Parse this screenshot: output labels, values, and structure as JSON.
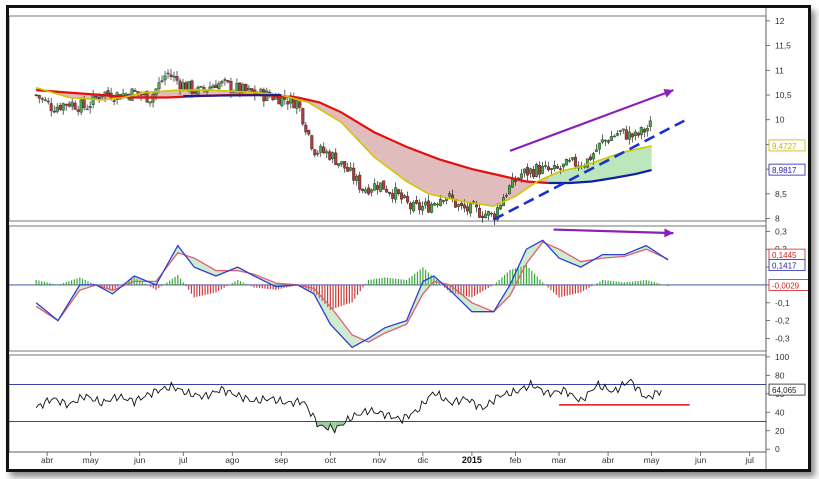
{
  "chart_data": [
    {
      "type": "candlestick",
      "panel": "price",
      "title": "",
      "y_ticks": [
        "12",
        "11,5",
        "11",
        "10,5",
        "10",
        "9,5",
        "9",
        "8,5",
        "8"
      ],
      "ylim": [
        7.95,
        12.1
      ],
      "last_values": [
        {
          "label": "9,4727",
          "color": "#c8b400"
        },
        {
          "label": "8,9817",
          "color": "#2222aa"
        }
      ],
      "close_path": [
        [
          0,
          10.5
        ],
        [
          3,
          10.25
        ],
        [
          6,
          10.35
        ],
        [
          9,
          10.25
        ],
        [
          12,
          10.55
        ],
        [
          15,
          10.5
        ],
        [
          18,
          10.55
        ],
        [
          21,
          10.45
        ],
        [
          24,
          10.95
        ],
        [
          27,
          10.7
        ],
        [
          30,
          10.55
        ],
        [
          33,
          10.75
        ],
        [
          36,
          10.65
        ],
        [
          39,
          10.55
        ],
        [
          42,
          10.5
        ],
        [
          45,
          10.45
        ],
        [
          48,
          10.35
        ],
        [
          51,
          9.4
        ],
        [
          54,
          9.3
        ],
        [
          57,
          9.0
        ],
        [
          60,
          8.6
        ],
        [
          63,
          8.7
        ],
        [
          66,
          8.5
        ],
        [
          69,
          8.2
        ],
        [
          72,
          8.25
        ],
        [
          75,
          8.5
        ],
        [
          78,
          8.2
        ],
        [
          81,
          8.15
        ],
        [
          84,
          8.05
        ],
        [
          86,
          8.5
        ],
        [
          89,
          8.9
        ],
        [
          92,
          9.0
        ],
        [
          95,
          8.95
        ],
        [
          98,
          9.1
        ],
        [
          101,
          9.15
        ],
        [
          104,
          9.55
        ],
        [
          107,
          9.75
        ],
        [
          110,
          9.65
        ],
        [
          113,
          9.9
        ]
      ],
      "sma_fast": [
        [
          0,
          10.65
        ],
        [
          6,
          10.45
        ],
        [
          12,
          10.4
        ],
        [
          16,
          10.45
        ],
        [
          20,
          10.55
        ],
        [
          26,
          10.6
        ],
        [
          32,
          10.6
        ],
        [
          40,
          10.55
        ],
        [
          45,
          10.5
        ],
        [
          50,
          10.35
        ],
        [
          56,
          9.95
        ],
        [
          62,
          9.25
        ],
        [
          68,
          8.75
        ],
        [
          72,
          8.5
        ],
        [
          78,
          8.35
        ],
        [
          84,
          8.25
        ],
        [
          88,
          8.45
        ],
        [
          92,
          8.75
        ],
        [
          96,
          8.95
        ],
        [
          100,
          9.05
        ],
        [
          104,
          9.2
        ],
        [
          108,
          9.35
        ],
        [
          113,
          9.47
        ]
      ],
      "sma_slow": [
        [
          0,
          10.6
        ],
        [
          6,
          10.55
        ],
        [
          12,
          10.5
        ],
        [
          18,
          10.45
        ],
        [
          24,
          10.45
        ],
        [
          30,
          10.48
        ],
        [
          36,
          10.5
        ],
        [
          42,
          10.5
        ],
        [
          48,
          10.45
        ],
        [
          52,
          10.35
        ],
        [
          56,
          10.15
        ],
        [
          62,
          9.75
        ],
        [
          68,
          9.45
        ],
        [
          74,
          9.2
        ],
        [
          80,
          9.0
        ],
        [
          86,
          8.85
        ],
        [
          90,
          8.75
        ],
        [
          94,
          8.72
        ]
      ],
      "sma_slow_rising": [
        [
          94,
          8.72
        ],
        [
          98,
          8.72
        ],
        [
          102,
          8.75
        ],
        [
          106,
          8.82
        ],
        [
          110,
          8.9
        ],
        [
          113,
          8.98
        ]
      ],
      "trend_line": {
        "from": [
          84,
          7.98
        ],
        "to": [
          119,
          9.98
        ]
      },
      "arrow": {
        "from": [
          87,
          9.37
        ],
        "to": [
          117,
          10.6
        ]
      }
    },
    {
      "type": "line",
      "panel": "macd",
      "y_ticks": [
        "0,3",
        "0,2",
        "0,1",
        "0",
        "-0,1",
        "-0,2",
        "-0,3"
      ],
      "ylim": [
        -0.37,
        0.33
      ],
      "last_values": [
        {
          "label": "0,1445",
          "color": "#cc2222"
        },
        {
          "label": "0,1417",
          "color": "#2222aa"
        },
        {
          "label": "-0,0029",
          "color": "#cc2222"
        }
      ],
      "macd": [
        [
          0,
          -0.1
        ],
        [
          4,
          -0.2
        ],
        [
          8,
          0.0
        ],
        [
          11,
          0.0
        ],
        [
          14,
          -0.05
        ],
        [
          18,
          0.05
        ],
        [
          22,
          0.0
        ],
        [
          26,
          0.22
        ],
        [
          29,
          0.1
        ],
        [
          33,
          0.05
        ],
        [
          37,
          0.1
        ],
        [
          40,
          0.05
        ],
        [
          44,
          -0.01
        ],
        [
          48,
          0.0
        ],
        [
          51,
          -0.05
        ],
        [
          54,
          -0.22
        ],
        [
          58,
          -0.35
        ],
        [
          61,
          -0.3
        ],
        [
          64,
          -0.24
        ],
        [
          68,
          -0.2
        ],
        [
          71,
          0.02
        ],
        [
          73,
          0.05
        ],
        [
          76,
          -0.03
        ],
        [
          80,
          -0.15
        ],
        [
          84,
          -0.15
        ],
        [
          87,
          0.0
        ],
        [
          90,
          0.2
        ],
        [
          93,
          0.25
        ],
        [
          96,
          0.15
        ],
        [
          100,
          0.1
        ],
        [
          104,
          0.17
        ],
        [
          108,
          0.17
        ],
        [
          112,
          0.22
        ],
        [
          116,
          0.14
        ]
      ],
      "signal": [
        [
          0,
          -0.12
        ],
        [
          4,
          -0.2
        ],
        [
          8,
          -0.03
        ],
        [
          11,
          0.0
        ],
        [
          14,
          -0.03
        ],
        [
          18,
          0.02
        ],
        [
          22,
          0.02
        ],
        [
          26,
          0.18
        ],
        [
          29,
          0.15
        ],
        [
          33,
          0.08
        ],
        [
          37,
          0.08
        ],
        [
          40,
          0.06
        ],
        [
          44,
          0.01
        ],
        [
          48,
          0.0
        ],
        [
          51,
          -0.02
        ],
        [
          54,
          -0.12
        ],
        [
          58,
          -0.28
        ],
        [
          61,
          -0.32
        ],
        [
          64,
          -0.27
        ],
        [
          68,
          -0.22
        ],
        [
          71,
          -0.05
        ],
        [
          73,
          0.02
        ],
        [
          76,
          0.0
        ],
        [
          80,
          -0.1
        ],
        [
          84,
          -0.15
        ],
        [
          87,
          -0.06
        ],
        [
          90,
          0.12
        ],
        [
          93,
          0.24
        ],
        [
          96,
          0.2
        ],
        [
          100,
          0.13
        ],
        [
          104,
          0.15
        ],
        [
          108,
          0.16
        ],
        [
          112,
          0.2
        ],
        [
          116,
          0.144
        ]
      ],
      "zero_line": 0,
      "arrow": {
        "from": [
          95,
          0.31
        ],
        "to": [
          117,
          0.29
        ]
      }
    },
    {
      "type": "line",
      "panel": "rsi",
      "y_ticks": [
        "100",
        "80",
        "60",
        "40",
        "20",
        "0"
      ],
      "ylim": [
        -3,
        102
      ],
      "last_values": [
        {
          "label": "64,065",
          "color": "#222222"
        }
      ],
      "levels": [
        70,
        30
      ],
      "rsi": [
        [
          0,
          45
        ],
        [
          3,
          55
        ],
        [
          6,
          48
        ],
        [
          9,
          58
        ],
        [
          12,
          50
        ],
        [
          15,
          57
        ],
        [
          18,
          52
        ],
        [
          22,
          63
        ],
        [
          25,
          68
        ],
        [
          28,
          60
        ],
        [
          31,
          57
        ],
        [
          34,
          65
        ],
        [
          37,
          58
        ],
        [
          40,
          52
        ],
        [
          43,
          55
        ],
        [
          46,
          50
        ],
        [
          49,
          52
        ],
        [
          52,
          25
        ],
        [
          55,
          22
        ],
        [
          58,
          35
        ],
        [
          61,
          42
        ],
        [
          64,
          38
        ],
        [
          67,
          32
        ],
        [
          70,
          42
        ],
        [
          73,
          62
        ],
        [
          76,
          50
        ],
        [
          79,
          55
        ],
        [
          82,
          44
        ],
        [
          85,
          58
        ],
        [
          88,
          62
        ],
        [
          91,
          70
        ],
        [
          94,
          60
        ],
        [
          97,
          64
        ],
        [
          100,
          52
        ],
        [
          103,
          70
        ],
        [
          106,
          62
        ],
        [
          109,
          75
        ],
        [
          112,
          55
        ],
        [
          115,
          64
        ]
      ],
      "support_line": {
        "from": [
          96,
          48
        ],
        "to": [
          120,
          48
        ]
      }
    }
  ],
  "x_axis": {
    "labels": [
      "abr",
      "may",
      "jun",
      "jul",
      "ago",
      "sep",
      "oct",
      "nov",
      "dic",
      "2015",
      "feb",
      "mar",
      "abr",
      "may",
      "jun",
      "jul"
    ],
    "label_positions": [
      2,
      10,
      19,
      27,
      36,
      45,
      54,
      63,
      71,
      80,
      88,
      96,
      105,
      113,
      122,
      131
    ],
    "domain": [
      -5,
      134
    ]
  },
  "colors": {
    "up": "#2a8a2a",
    "down": "#c22a2a",
    "sma_fast": "#d4c400",
    "sma_slow": "#e01010",
    "sma_rising": "#1020a0",
    "trend": "#1c2fd0",
    "arrow": "#8b1fb8",
    "macd": "#2e3fd0",
    "signal": "#e06070",
    "rsi": "#111111",
    "level": "#1a2a9a",
    "support": "#e01010"
  }
}
